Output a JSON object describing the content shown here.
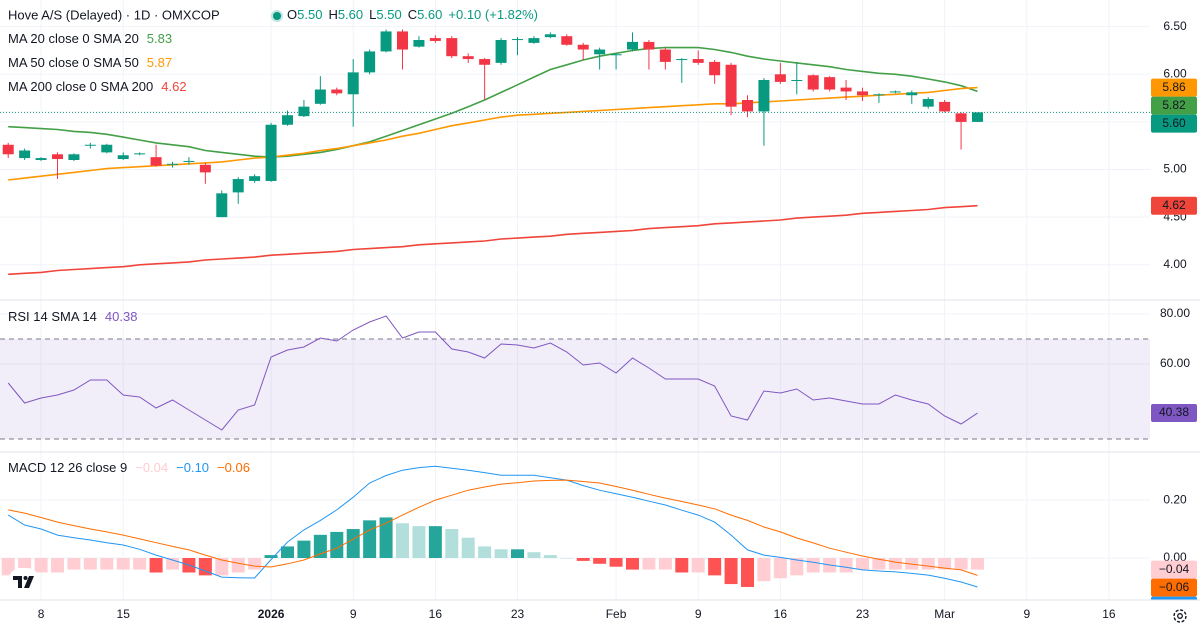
{
  "chart_data": [
    {
      "type": "candlestick",
      "title": "Hove A/S (Delayed) · 1D · OMXCOP",
      "ohlc_legend": [
        {
          "label": "O",
          "value": "5.50"
        },
        {
          "label": "H",
          "value": "5.60"
        },
        {
          "label": "L",
          "value": "5.50"
        },
        {
          "label": "C",
          "value": "5.60"
        }
      ],
      "change": "+0.10 (+1.82%)",
      "up_color": "#089981",
      "down_color": "#f23645",
      "open": [
        5.26,
        5.12,
        5.1,
        5.16,
        5.1,
        5.25,
        5.18,
        5.11,
        5.16,
        5.13,
        5.05,
        5.08,
        5.05,
        4.5,
        4.76,
        4.88,
        4.88,
        5.47,
        5.56,
        5.69,
        5.84,
        5.79,
        6.02,
        6.24,
        6.45,
        6.29,
        6.38,
        6.38,
        6.19,
        6.16,
        6.12,
        6.36,
        6.33,
        6.39,
        6.4,
        6.31,
        6.21,
        6.2,
        6.26,
        6.34,
        6.26,
        6.15,
        6.16,
        6.13,
        6.1,
        5.73,
        5.61,
        6.0,
        5.93,
        5.99,
        5.97,
        5.86,
        5.82,
        5.78,
        5.81,
        5.78,
        5.66,
        5.71,
        5.59,
        5.5
      ],
      "high": [
        5.28,
        5.22,
        5.13,
        5.18,
        5.17,
        5.28,
        5.27,
        5.18,
        5.18,
        5.26,
        5.08,
        5.13,
        5.07,
        4.78,
        4.92,
        4.95,
        5.49,
        5.62,
        5.73,
        5.98,
        5.86,
        6.16,
        6.26,
        6.47,
        6.47,
        6.4,
        6.41,
        6.4,
        6.22,
        6.17,
        6.38,
        6.39,
        6.4,
        6.44,
        6.42,
        6.33,
        6.28,
        6.22,
        6.44,
        6.36,
        6.28,
        6.17,
        6.25,
        6.15,
        6.12,
        5.78,
        5.96,
        6.12,
        6.13,
        6.0,
        5.98,
        5.94,
        5.86,
        5.8,
        5.83,
        5.83,
        5.76,
        5.73,
        5.6,
        5.6
      ],
      "low": [
        5.12,
        5.1,
        5.09,
        4.9,
        5.09,
        5.22,
        5.17,
        5.1,
        5.15,
        5.03,
        5.02,
        5.05,
        4.85,
        4.5,
        4.64,
        4.86,
        4.87,
        5.46,
        5.55,
        5.68,
        5.78,
        5.45,
        6.0,
        6.23,
        6.05,
        6.28,
        6.33,
        6.17,
        6.12,
        5.73,
        6.1,
        6.2,
        6.32,
        6.38,
        6.3,
        6.15,
        6.05,
        6.05,
        6.24,
        6.05,
        6.05,
        5.91,
        6.1,
        5.9,
        5.57,
        5.55,
        5.25,
        5.9,
        5.79,
        5.82,
        5.82,
        5.73,
        5.72,
        5.7,
        5.8,
        5.69,
        5.64,
        5.6,
        5.21,
        5.5
      ],
      "close": [
        5.16,
        5.2,
        5.12,
        5.11,
        5.16,
        5.26,
        5.26,
        5.15,
        5.17,
        5.04,
        5.06,
        5.09,
        4.97,
        4.75,
        4.9,
        4.93,
        5.47,
        5.57,
        5.66,
        5.84,
        5.8,
        6.02,
        6.24,
        6.45,
        6.26,
        6.36,
        6.35,
        6.19,
        6.16,
        6.1,
        6.36,
        6.37,
        6.38,
        6.42,
        6.31,
        6.26,
        6.26,
        6.21,
        6.34,
        6.26,
        6.13,
        6.16,
        6.12,
        5.99,
        5.66,
        5.61,
        5.94,
        5.92,
        5.94,
        5.84,
        5.84,
        5.82,
        5.78,
        5.79,
        5.82,
        5.81,
        5.74,
        5.61,
        5.5,
        5.6
      ],
      "last_price": {
        "value": 5.6,
        "label": "5.60"
      },
      "moving_averages": [
        {
          "name": "MA 20 close 0 SMA 20",
          "legend_value": "5.83",
          "tag": "5.82",
          "color": "#43a047",
          "values": [
            5.45,
            5.44,
            5.43,
            5.42,
            5.4,
            5.39,
            5.37,
            5.34,
            5.31,
            5.28,
            5.26,
            5.24,
            5.2,
            5.18,
            5.16,
            5.14,
            5.13,
            5.14,
            5.16,
            5.18,
            5.21,
            5.25,
            5.29,
            5.35,
            5.41,
            5.47,
            5.53,
            5.59,
            5.66,
            5.73,
            5.81,
            5.89,
            5.97,
            6.05,
            6.1,
            6.15,
            6.19,
            6.22,
            6.25,
            6.27,
            6.28,
            6.28,
            6.28,
            6.26,
            6.23,
            6.19,
            6.16,
            6.14,
            6.12,
            6.1,
            6.08,
            6.05,
            6.03,
            6.01,
            6.0,
            5.98,
            5.95,
            5.92,
            5.88,
            5.82
          ]
        },
        {
          "name": "MA 50 close 0 SMA 50",
          "legend_value": "5.87",
          "tag": "5.86",
          "color": "#ff9800",
          "values": [
            4.89,
            4.91,
            4.93,
            4.95,
            4.97,
            4.99,
            5.01,
            5.02,
            5.03,
            5.04,
            5.05,
            5.06,
            5.07,
            5.08,
            5.1,
            5.12,
            5.13,
            5.15,
            5.17,
            5.2,
            5.22,
            5.25,
            5.28,
            5.31,
            5.35,
            5.38,
            5.42,
            5.46,
            5.49,
            5.52,
            5.55,
            5.57,
            5.58,
            5.59,
            5.6,
            5.61,
            5.62,
            5.63,
            5.64,
            5.65,
            5.66,
            5.67,
            5.68,
            5.69,
            5.69,
            5.7,
            5.71,
            5.72,
            5.73,
            5.74,
            5.75,
            5.76,
            5.77,
            5.78,
            5.79,
            5.8,
            5.81,
            5.83,
            5.85,
            5.86
          ]
        },
        {
          "name": "MA 200 close 0 SMA 200",
          "legend_value": "4.62",
          "tag": "4.62",
          "color": "#f0453a",
          "values": [
            3.9,
            3.91,
            3.92,
            3.94,
            3.95,
            3.96,
            3.97,
            3.98,
            4.0,
            4.01,
            4.02,
            4.03,
            4.05,
            4.06,
            4.07,
            4.08,
            4.1,
            4.11,
            4.12,
            4.13,
            4.14,
            4.16,
            4.17,
            4.18,
            4.19,
            4.21,
            4.22,
            4.23,
            4.24,
            4.25,
            4.27,
            4.28,
            4.29,
            4.3,
            4.32,
            4.33,
            4.34,
            4.35,
            4.36,
            4.38,
            4.39,
            4.4,
            4.41,
            4.43,
            4.44,
            4.45,
            4.46,
            4.47,
            4.49,
            4.5,
            4.51,
            4.52,
            4.54,
            4.55,
            4.56,
            4.57,
            4.58,
            4.6,
            4.61,
            4.62
          ]
        }
      ],
      "xlim": [
        -0.5,
        69.5
      ],
      "ylim": [
        3.63,
        6.78
      ],
      "yticks": [
        {
          "value": 6.5,
          "label": "6.50"
        },
        {
          "value": 6,
          "label": "6.00"
        },
        {
          "value": 5.5,
          "label": "5.50"
        },
        {
          "value": 5,
          "label": "5.00"
        },
        {
          "value": 4.5,
          "label": "4.50"
        },
        {
          "value": 4,
          "label": "4.00"
        }
      ],
      "xticks": [
        {
          "value": 2,
          "label": "8"
        },
        {
          "value": 7,
          "label": "15"
        },
        {
          "value": 16,
          "label": "2026"
        },
        {
          "value": 21,
          "label": "9"
        },
        {
          "value": 26,
          "label": "16"
        },
        {
          "value": 31,
          "label": "23"
        },
        {
          "value": 37,
          "label": "Feb"
        },
        {
          "value": 42,
          "label": "9"
        },
        {
          "value": 47,
          "label": "16"
        },
        {
          "value": 52,
          "label": "23"
        },
        {
          "value": 57,
          "label": "Mar"
        },
        {
          "value": 62,
          "label": "9"
        },
        {
          "value": 67,
          "label": "16"
        }
      ],
      "grid": true
    },
    {
      "type": "line",
      "title": "RSI 14 SMA 14",
      "legend_value": "40.38",
      "tag": "40.38",
      "color": "#7e57c2",
      "values": [
        52.4,
        44.4,
        46.4,
        47.6,
        49.6,
        53.6,
        53.6,
        47.6,
        46.8,
        42.4,
        45.6,
        41.6,
        37.6,
        33.6,
        41.6,
        43.6,
        62.8,
        65.6,
        66.8,
        70.4,
        69.2,
        73.6,
        76.8,
        79.2,
        70.4,
        72.8,
        72.8,
        66.0,
        64.8,
        62.4,
        68.0,
        67.6,
        66.4,
        68.4,
        64.8,
        59.6,
        60.4,
        56.4,
        62.4,
        58.4,
        54.0,
        54.0,
        54.0,
        51.2,
        39.2,
        37.6,
        49.2,
        48.4,
        50.0,
        45.6,
        46.4,
        45.2,
        44.0,
        44.0,
        47.6,
        45.6,
        44.0,
        39.2,
        36.0,
        40.38
      ],
      "band": [
        30,
        70
      ],
      "ylim": [
        24.8,
        85.6
      ],
      "yticks": [
        {
          "value": 80,
          "label": "80.00"
        },
        {
          "value": 60,
          "label": "60.00"
        }
      ]
    },
    {
      "type": "macd",
      "title": "MACD 12 26 close 9",
      "histogram": {
        "legend_value": "−0.04",
        "tag": "−0.04",
        "colors": [
          "#26a69a",
          "#b2dfdb",
          "#ffcdd2",
          "#ff5252"
        ],
        "values": [
          -0.06,
          -0.06,
          -0.05,
          -0.05,
          -0.04,
          -0.04,
          -0.04,
          -0.04,
          -0.04,
          -0.05,
          -0.04,
          -0.05,
          -0.06,
          -0.06,
          -0.05,
          -0.04,
          0.01,
          0.04,
          0.06,
          0.08,
          0.09,
          0.1,
          0.13,
          0.14,
          0.12,
          0.11,
          0.11,
          0.1,
          0.07,
          0.04,
          0.03,
          0.03,
          0.02,
          0.01,
          0.0,
          -0.01,
          -0.02,
          -0.03,
          -0.04,
          -0.04,
          -0.04,
          -0.05,
          -0.05,
          -0.06,
          -0.09,
          -0.1,
          -0.08,
          -0.07,
          -0.06,
          -0.05,
          -0.05,
          -0.05,
          -0.04,
          -0.04,
          -0.04,
          -0.04,
          -0.04,
          -0.04,
          -0.04,
          -0.04
        ]
      },
      "macd": {
        "legend_value": "−0.10",
        "tag": "−0.10",
        "color": "#2196f3",
        "values": [
          0.148,
          0.114,
          0.1,
          0.079,
          0.07,
          0.062,
          0.053,
          0.045,
          0.03,
          0.01,
          -0.007,
          -0.024,
          -0.045,
          -0.066,
          -0.068,
          -0.069,
          -0.005,
          0.055,
          0.097,
          0.13,
          0.166,
          0.21,
          0.259,
          0.285,
          0.303,
          0.312,
          0.317,
          0.31,
          0.303,
          0.295,
          0.286,
          0.286,
          0.286,
          0.277,
          0.269,
          0.25,
          0.234,
          0.222,
          0.21,
          0.196,
          0.183,
          0.165,
          0.148,
          0.124,
          0.079,
          0.028,
          0.01,
          0.002,
          -0.007,
          -0.015,
          -0.024,
          -0.032,
          -0.041,
          -0.045,
          -0.048,
          -0.053,
          -0.059,
          -0.07,
          -0.083,
          -0.1
        ]
      },
      "signal": {
        "legend_value": "−0.06",
        "tag": "−0.06",
        "color": "#ff6d00",
        "values": [
          0.166,
          0.155,
          0.14,
          0.124,
          0.112,
          0.1,
          0.09,
          0.079,
          0.066,
          0.053,
          0.04,
          0.028,
          0.01,
          -0.007,
          -0.018,
          -0.028,
          -0.031,
          -0.02,
          -0.007,
          0.014,
          0.034,
          0.065,
          0.097,
          0.12,
          0.148,
          0.175,
          0.2,
          0.217,
          0.234,
          0.245,
          0.255,
          0.26,
          0.266,
          0.268,
          0.269,
          0.264,
          0.259,
          0.247,
          0.234,
          0.22,
          0.207,
          0.195,
          0.183,
          0.17,
          0.148,
          0.13,
          0.107,
          0.09,
          0.069,
          0.052,
          0.034,
          0.02,
          0.007,
          -0.004,
          -0.014,
          -0.021,
          -0.028,
          -0.035,
          -0.041,
          -0.06
        ]
      },
      "ylim": [
        -0.145,
        0.366
      ],
      "yticks": [
        {
          "value": 0.2,
          "label": "0.20"
        },
        {
          "value": 0,
          "label": "0.00"
        }
      ]
    }
  ]
}
